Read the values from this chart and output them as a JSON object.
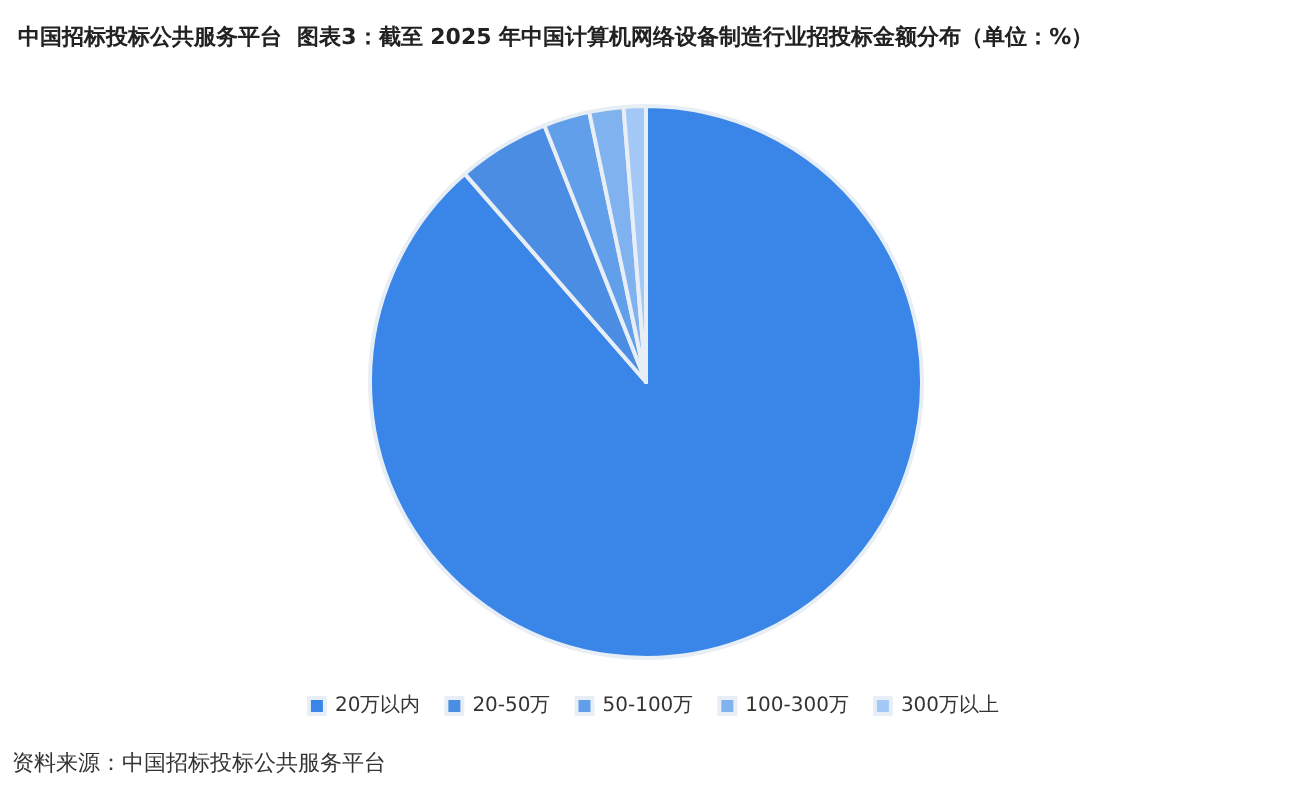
{
  "chart_data": {
    "type": "pie",
    "title": "中国招标投标公共服务平台  图表3：截至 2025 年中国计算机网络设备制造行业招投标金额分布（单位：%）",
    "categories": [
      "20万以内",
      "20-50万",
      "50-100万",
      "100-300万",
      "300万以上"
    ],
    "values": [
      88.6,
      5.4,
      2.7,
      2.0,
      1.3
    ],
    "colors": [
      "#3a86e8",
      "#4b8de2",
      "#629fea",
      "#80b2f0",
      "#a3c8f6"
    ],
    "legend": "bottom",
    "annotations": [
      "资料来源：中国招标投标公共服务平台"
    ]
  }
}
